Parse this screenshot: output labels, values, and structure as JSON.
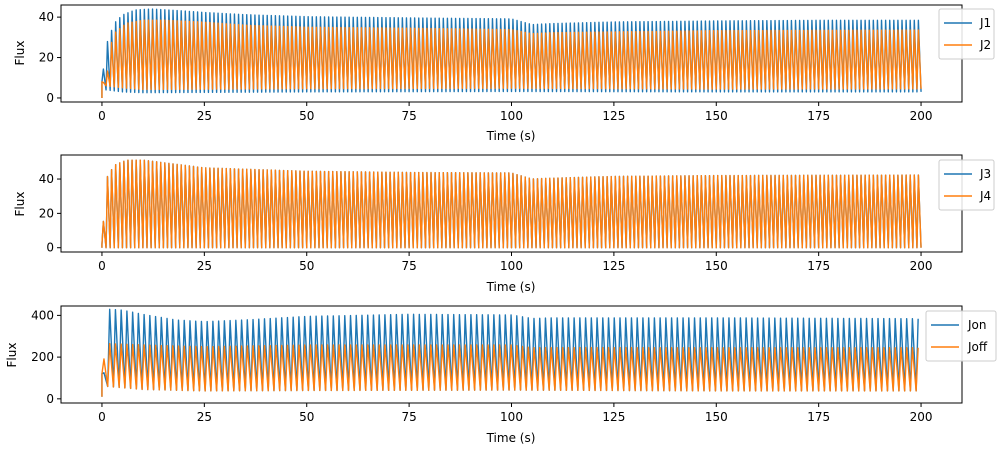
{
  "chart_data": [
    {
      "type": "line",
      "xlabel": "Time (s)",
      "ylabel": "Flux",
      "xlim": [
        -10,
        210
      ],
      "ylim": [
        -2,
        46
      ],
      "xticks": [
        0,
        25,
        50,
        75,
        100,
        125,
        150,
        175,
        200
      ],
      "yticks": [
        0,
        20,
        40
      ],
      "legend_position": "right",
      "series": [
        {
          "name": "J1",
          "color": "#1f77b4",
          "oscillation_period": 1.0,
          "envelope_top": [
            [
              0,
              8
            ],
            [
              1.0,
              26
            ],
            [
              3,
              37
            ],
            [
              5,
              41
            ],
            [
              8,
              43.5
            ],
            [
              12,
              44
            ],
            [
              18,
              43.3
            ],
            [
              25,
              42.3
            ],
            [
              35,
              41.2
            ],
            [
              50,
              40.2
            ],
            [
              75,
              39.6
            ],
            [
              100,
              39.1
            ],
            [
              105,
              36.3
            ],
            [
              110,
              36.8
            ],
            [
              125,
              37.6
            ],
            [
              150,
              38.1
            ],
            [
              175,
              38.4
            ],
            [
              200,
              38.4
            ]
          ],
          "envelope_bottom": [
            [
              0,
              0
            ],
            [
              1,
              4
            ],
            [
              5,
              3
            ],
            [
              10,
              2.6
            ],
            [
              50,
              3
            ],
            [
              100,
              3.2
            ],
            [
              150,
              3
            ],
            [
              200,
              3
            ]
          ]
        },
        {
          "name": "J2",
          "color": "#ff7f0e",
          "oscillation_period": 1.0,
          "envelope_top": [
            [
              0,
              8
            ],
            [
              1.0,
              7
            ],
            [
              2,
              25
            ],
            [
              3,
              32
            ],
            [
              6,
              37
            ],
            [
              10,
              38.5
            ],
            [
              15,
              38.5
            ],
            [
              25,
              37.5
            ],
            [
              35,
              36
            ],
            [
              50,
              35
            ],
            [
              75,
              34.5
            ],
            [
              100,
              33.8
            ],
            [
              105,
              31.8
            ],
            [
              110,
              32.3
            ],
            [
              150,
              33.3
            ],
            [
              200,
              33.6
            ]
          ],
          "envelope_bottom": [
            [
              0,
              0
            ],
            [
              1,
              6
            ],
            [
              5,
              5
            ],
            [
              10,
              4.2
            ],
            [
              50,
              4.6
            ],
            [
              100,
              4.8
            ],
            [
              150,
              4.4
            ],
            [
              200,
              4.5
            ]
          ]
        }
      ]
    },
    {
      "type": "line",
      "xlabel": "Time (s)",
      "ylabel": "Flux",
      "xlim": [
        -10,
        210
      ],
      "ylim": [
        -2.5,
        54
      ],
      "xticks": [
        0,
        25,
        50,
        75,
        100,
        125,
        150,
        175,
        200
      ],
      "yticks": [
        0,
        20,
        40
      ],
      "legend_position": "right",
      "series": [
        {
          "name": "J3",
          "color": "#1f77b4",
          "oscillation_period": 1.0,
          "envelope_top": [
            [
              0,
              2
            ],
            [
              1.0,
              40
            ],
            [
              3,
              48
            ],
            [
              6,
              51
            ],
            [
              10,
              51
            ],
            [
              15,
              49.5
            ],
            [
              25,
              46.5
            ],
            [
              50,
              44.5
            ],
            [
              75,
              43.8
            ],
            [
              100,
              43.5
            ],
            [
              105,
              40
            ],
            [
              110,
              40.5
            ],
            [
              125,
              41.5
            ],
            [
              150,
              42
            ],
            [
              200,
              42.3
            ]
          ],
          "envelope_bottom": [
            [
              0,
              0
            ],
            [
              200,
              0
            ]
          ]
        },
        {
          "name": "J4",
          "color": "#ff7f0e",
          "oscillation_period": 1.0,
          "envelope_top": [
            [
              0,
              2
            ],
            [
              1.0,
              40
            ],
            [
              3,
              48
            ],
            [
              6,
              51
            ],
            [
              10,
              51
            ],
            [
              15,
              49.5
            ],
            [
              25,
              46.5
            ],
            [
              50,
              44.5
            ],
            [
              75,
              43.8
            ],
            [
              100,
              43.5
            ],
            [
              105,
              40
            ],
            [
              110,
              40.5
            ],
            [
              125,
              41.5
            ],
            [
              150,
              42
            ],
            [
              200,
              42.3
            ]
          ],
          "envelope_bottom": [
            [
              0,
              0
            ],
            [
              200,
              0
            ]
          ]
        }
      ]
    },
    {
      "type": "line",
      "xlabel": "Time (s)",
      "ylabel": "Flux",
      "xlim": [
        -10,
        210
      ],
      "ylim": [
        -20,
        445
      ],
      "xticks": [
        0,
        25,
        50,
        75,
        100,
        125,
        150,
        175,
        200
      ],
      "yticks": [
        0,
        200,
        400
      ],
      "legend_position": "right",
      "series": [
        {
          "name": "Jon",
          "color": "#1f77b4",
          "oscillation_period": 1.4,
          "envelope_top": [
            [
              0,
              120
            ],
            [
              1.0,
              130
            ],
            [
              1.2,
              430
            ],
            [
              5,
              425
            ],
            [
              10,
              405
            ],
            [
              18,
              378
            ],
            [
              25,
              370
            ],
            [
              35,
              378
            ],
            [
              50,
              395
            ],
            [
              75,
              405
            ],
            [
              100,
              402
            ],
            [
              105,
              385
            ],
            [
              110,
              388
            ],
            [
              150,
              388
            ],
            [
              200,
              384
            ]
          ],
          "envelope_bottom": [
            [
              0,
              10
            ],
            [
              1.0,
              60
            ],
            [
              10,
              45
            ],
            [
              25,
              38
            ],
            [
              50,
              40
            ],
            [
              100,
              42
            ],
            [
              150,
              38
            ],
            [
              200,
              38
            ]
          ]
        },
        {
          "name": "Joff",
          "color": "#ff7f0e",
          "oscillation_period": 1.4,
          "envelope_top": [
            [
              0,
              120
            ],
            [
              1.0,
              265
            ],
            [
              5,
              262
            ],
            [
              15,
              255
            ],
            [
              25,
              250
            ],
            [
              50,
              258
            ],
            [
              100,
              258
            ],
            [
              105,
              245
            ],
            [
              110,
              246
            ],
            [
              150,
              245
            ],
            [
              200,
              245
            ]
          ],
          "envelope_bottom": [
            [
              0,
              10
            ],
            [
              1.0,
              60
            ],
            [
              10,
              45
            ],
            [
              25,
              38
            ],
            [
              50,
              40
            ],
            [
              100,
              42
            ],
            [
              150,
              38
            ],
            [
              200,
              38
            ]
          ]
        }
      ]
    }
  ]
}
